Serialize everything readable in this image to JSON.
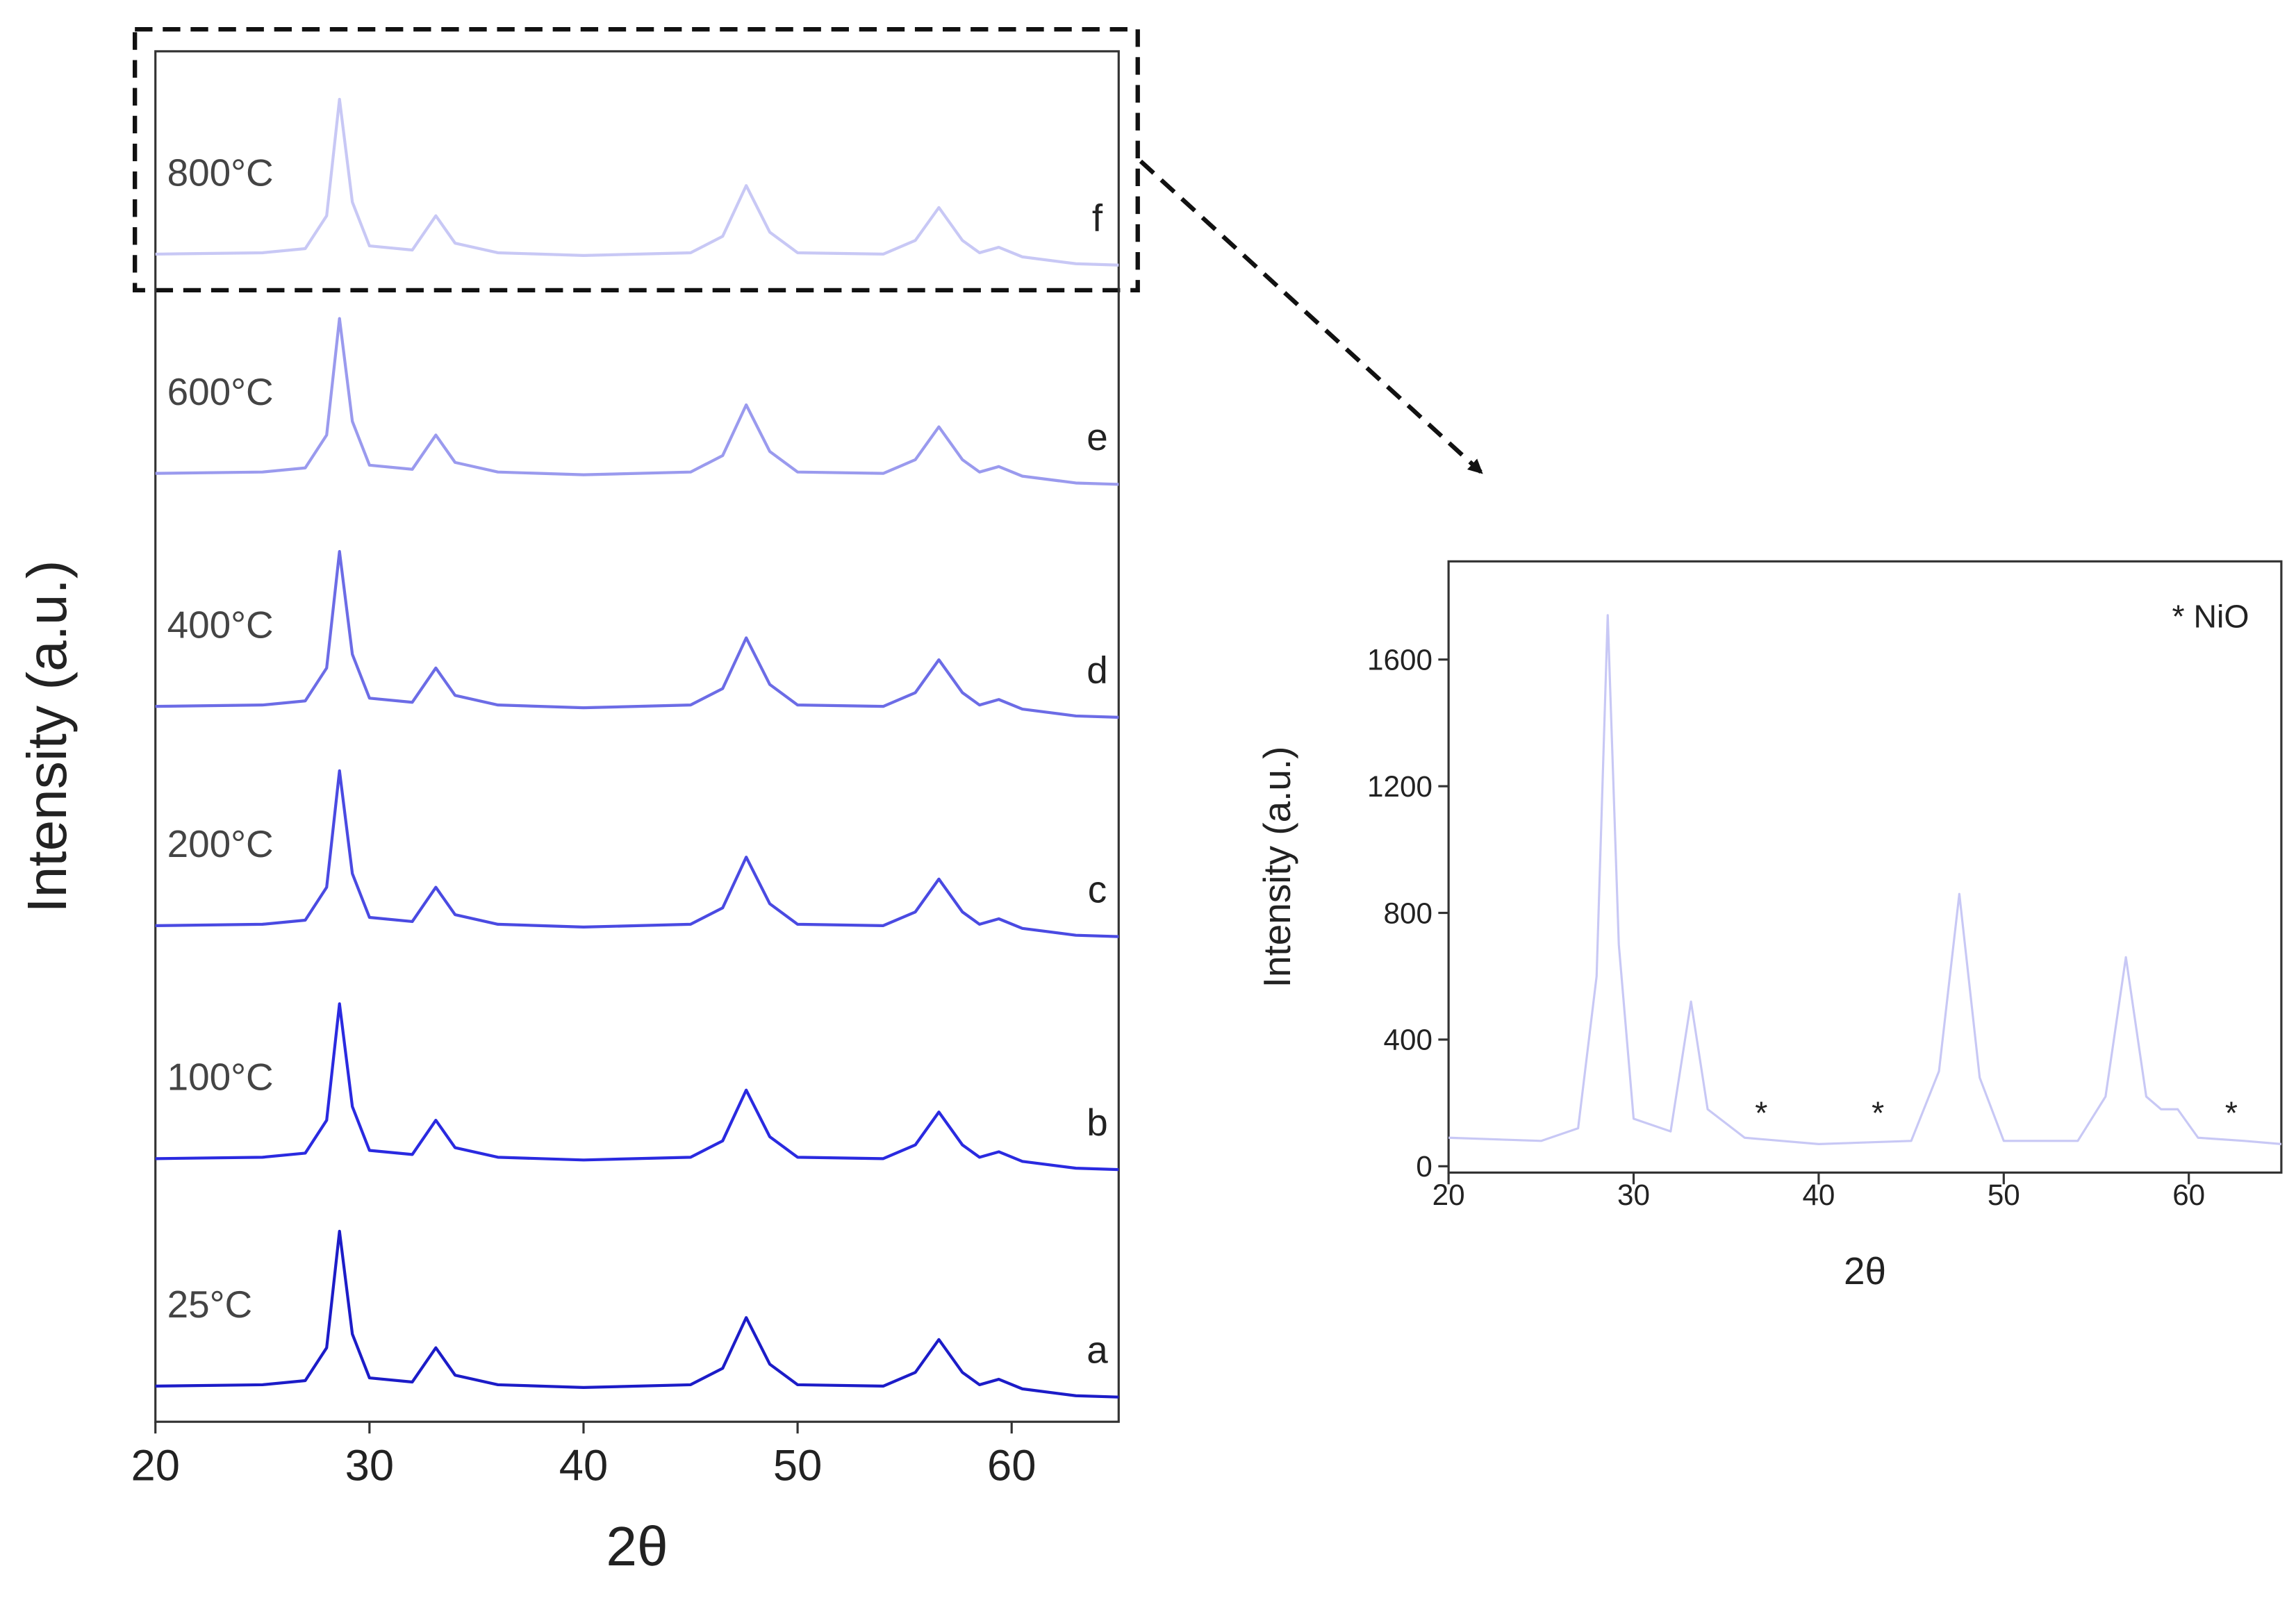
{
  "chart_data": [
    {
      "type": "line",
      "xlabel": "2θ",
      "ylabel": "Intensity (a.u.)",
      "x": [
        20,
        25,
        27,
        28,
        28.6,
        29.2,
        30,
        32,
        33.1,
        34,
        36,
        40,
        45,
        46.5,
        47.6,
        48.7,
        50,
        54,
        55.5,
        56.6,
        57.7,
        58.5,
        59.4,
        60.5,
        63,
        65
      ],
      "xlim": [
        20,
        65
      ],
      "xticks": [
        20,
        30,
        40,
        50,
        60
      ],
      "ylim": [
        0,
        100
      ],
      "series": [
        {
          "name": "25°C",
          "tag": "a",
          "color": "#1c1cc8",
          "values": [
            2.6,
            2.7,
            3.0,
            5.4,
            13.9,
            6.4,
            3.2,
            2.9,
            5.4,
            3.4,
            2.7,
            2.5,
            2.7,
            3.9,
            7.6,
            4.2,
            2.7,
            2.6,
            3.6,
            6.0,
            3.6,
            2.7,
            3.1,
            2.4,
            1.9,
            1.8
          ]
        },
        {
          "name": "100°C",
          "tag": "b",
          "color": "#2a2ae0",
          "values": [
            19.2,
            19.3,
            19.6,
            22,
            30.5,
            23,
            19.8,
            19.5,
            22,
            20,
            19.3,
            19.1,
            19.3,
            20.5,
            24.2,
            20.8,
            19.3,
            19.2,
            20.2,
            22.6,
            20.2,
            19.3,
            19.7,
            19,
            18.5,
            18.4
          ]
        },
        {
          "name": "200°C",
          "tag": "c",
          "color": "#4a4ae2",
          "values": [
            36.2,
            36.3,
            36.6,
            39,
            47.5,
            40,
            36.8,
            36.5,
            39,
            37,
            36.3,
            36.1,
            36.3,
            37.5,
            41.2,
            37.8,
            36.3,
            36.2,
            37.2,
            39.6,
            37.2,
            36.3,
            36.7,
            36,
            35.5,
            35.4
          ]
        },
        {
          "name": "400°C",
          "tag": "d",
          "color": "#6c6ce6",
          "values": [
            52.2,
            52.3,
            52.6,
            55,
            63.5,
            56,
            52.8,
            52.5,
            55,
            53,
            52.3,
            52.1,
            52.3,
            53.5,
            57.2,
            53.8,
            52.3,
            52.2,
            53.2,
            55.6,
            53.2,
            52.3,
            52.7,
            52,
            51.5,
            51.4
          ]
        },
        {
          "name": "600°C",
          "tag": "e",
          "color": "#9a9aee",
          "values": [
            69.2,
            69.3,
            69.6,
            72,
            80.5,
            73,
            69.8,
            69.5,
            72,
            70,
            69.3,
            69.1,
            69.3,
            70.5,
            74.2,
            70.8,
            69.3,
            69.2,
            70.2,
            72.6,
            70.2,
            69.3,
            69.7,
            69,
            68.5,
            68.4
          ]
        },
        {
          "name": "800°C",
          "tag": "f",
          "color": "#c8c8f5",
          "values": [
            85.2,
            85.3,
            85.6,
            88,
            96.5,
            89,
            85.8,
            85.5,
            88,
            86,
            85.3,
            85.1,
            85.3,
            86.5,
            90.2,
            86.8,
            85.3,
            85.2,
            86.2,
            88.6,
            86.2,
            85.3,
            85.7,
            85,
            84.5,
            84.4
          ]
        }
      ]
    },
    {
      "type": "line",
      "xlabel": "2θ",
      "ylabel": "Intensity (a.u.)",
      "annotation": "* NiO",
      "x": [
        20,
        25,
        27,
        28,
        28.6,
        29.2,
        30,
        32,
        33.1,
        34,
        36,
        40,
        45,
        46.5,
        47.6,
        48.7,
        50,
        54,
        55.5,
        56.6,
        57.7,
        58.5,
        59.4,
        60.5,
        63,
        65
      ],
      "xlim": [
        20,
        65
      ],
      "xticks": [
        20,
        30,
        40,
        50,
        60
      ],
      "ylim": [
        -20,
        1910
      ],
      "yticks": [
        0,
        400,
        800,
        1200,
        1600
      ],
      "series": [
        {
          "color": "#c8c8f5",
          "values": [
            90,
            80,
            120,
            600,
            1740,
            700,
            150,
            110,
            520,
            180,
            90,
            70,
            80,
            300,
            860,
            280,
            80,
            80,
            220,
            660,
            220,
            180,
            180,
            90,
            80,
            70
          ]
        }
      ],
      "markers": {
        "label": "*",
        "x": [
          36.9,
          43.2,
          62.3
        ],
        "y": [
          180,
          180,
          180
        ]
      }
    }
  ]
}
